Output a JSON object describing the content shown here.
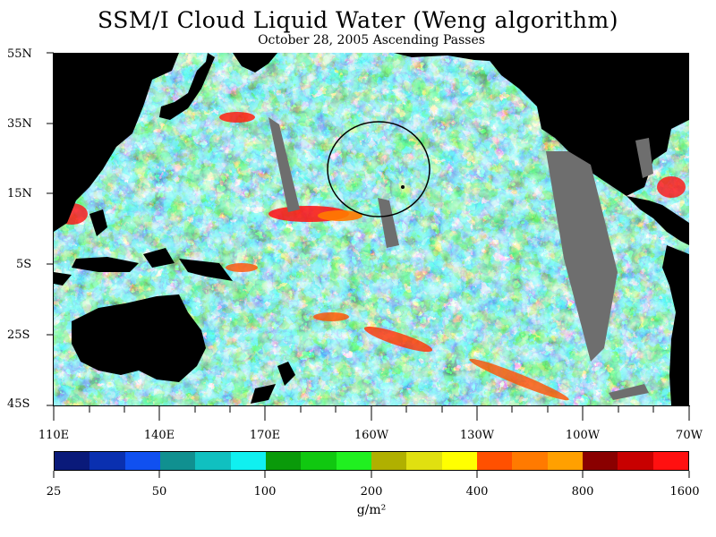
{
  "title": "SSM/I Cloud Liquid Water (Weng algorithm)",
  "subtitle": "October 28, 2005  Ascending Passes",
  "lat_labels": [
    "55N",
    "35N",
    "15N",
    "5S",
    "25S",
    "45S"
  ],
  "lon_labels": [
    "110E",
    "140E",
    "170E",
    "160W",
    "130W",
    "100W",
    "70W"
  ],
  "colorbar": {
    "colors": [
      "#0a1a7a",
      "#0a30b0",
      "#1050f0",
      "#109090",
      "#10c0c0",
      "#10f0f0",
      "#0a9a0a",
      "#10c810",
      "#20f020",
      "#b0b000",
      "#e0e010",
      "#ffff00",
      "#ff5000",
      "#ff7a00",
      "#ffa000",
      "#8a0000",
      "#c80000",
      "#ff1010"
    ],
    "tick_labels": [
      "25",
      "50",
      "100",
      "200",
      "400",
      "800",
      "1600"
    ],
    "units": "g/m²"
  },
  "colors": {
    "land": "#000000",
    "no_data": "#6e6e6e",
    "background": "#ffffff"
  }
}
